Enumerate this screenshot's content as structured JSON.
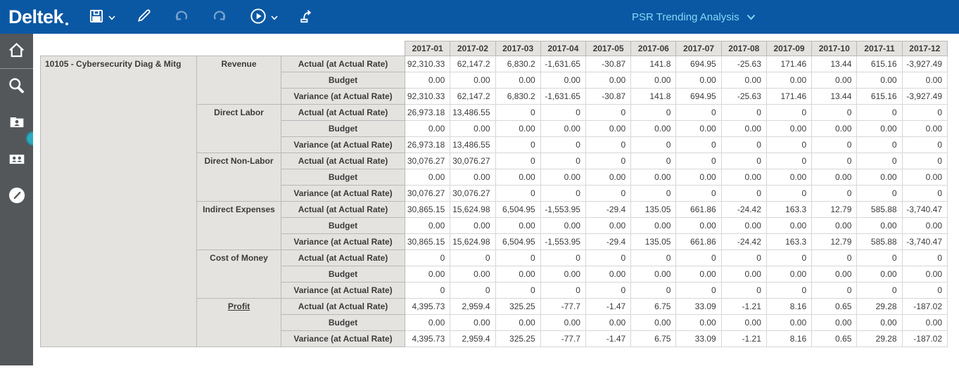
{
  "topbar": {
    "brand": "Deltek",
    "report_title": "PSR Trending Analysis",
    "icons": [
      "save-icon",
      "chevron-down-icon",
      "edit-pencil-icon",
      "undo-icon",
      "redo-icon",
      "run-report-icon",
      "chevron-down-icon",
      "export-submit-icon"
    ],
    "colors": {
      "bar_bg": "#0a58a4",
      "title_text": "#86d7f3"
    }
  },
  "sidebar": {
    "icons": [
      "home-icon",
      "search-icon",
      "employee-folder-icon",
      "employees-group-icon",
      "time-clock-icon"
    ],
    "colors": {
      "bg": "#54575a",
      "handle_accent": "#2fa9bc"
    }
  },
  "grid": {
    "project_label": "10105 - Cybersecurity Diag & Mitg",
    "months": [
      "2017-01",
      "2017-02",
      "2017-03",
      "2017-04",
      "2017-05",
      "2017-06",
      "2017-07",
      "2017-08",
      "2017-09",
      "2017-10",
      "2017-11",
      "2017-12"
    ],
    "colors": {
      "label_bg": "#e5e3e0",
      "label_border": "#b9b9b9",
      "value_border": "#d7d7d7",
      "text": "#3b3b3b"
    },
    "groups": [
      {
        "category": "Revenue",
        "underline": false,
        "rows": [
          {
            "label": "Actual (at Actual Rate)",
            "values": [
              "92,310.33",
              "62,147.2",
              "6,830.2",
              "-1,631.65",
              "-30.87",
              "141.8",
              "694.95",
              "-25.63",
              "171.46",
              "13.44",
              "615.16",
              "-3,927.49"
            ]
          },
          {
            "label": "Budget",
            "values": [
              "0.00",
              "0.00",
              "0.00",
              "0.00",
              "0.00",
              "0.00",
              "0.00",
              "0.00",
              "0.00",
              "0.00",
              "0.00",
              "0.00"
            ]
          },
          {
            "label": "Variance (at Actual Rate)",
            "values": [
              "92,310.33",
              "62,147.2",
              "6,830.2",
              "-1,631.65",
              "-30.87",
              "141.8",
              "694.95",
              "-25.63",
              "171.46",
              "13.44",
              "615.16",
              "-3,927.49"
            ]
          }
        ]
      },
      {
        "category": "Direct Labor",
        "underline": false,
        "rows": [
          {
            "label": "Actual (at Actual Rate)",
            "values": [
              "26,973.18",
              "13,486.55",
              "0",
              "0",
              "0",
              "0",
              "0",
              "0",
              "0",
              "0",
              "0",
              "0"
            ]
          },
          {
            "label": "Budget",
            "values": [
              "0.00",
              "0.00",
              "0.00",
              "0.00",
              "0.00",
              "0.00",
              "0.00",
              "0.00",
              "0.00",
              "0.00",
              "0.00",
              "0.00"
            ]
          },
          {
            "label": "Variance (at Actual Rate)",
            "values": [
              "26,973.18",
              "13,486.55",
              "0",
              "0",
              "0",
              "0",
              "0",
              "0",
              "0",
              "0",
              "0",
              "0"
            ]
          }
        ]
      },
      {
        "category": "Direct Non-Labor",
        "underline": false,
        "rows": [
          {
            "label": "Actual (at Actual Rate)",
            "values": [
              "30,076.27",
              "30,076.27",
              "0",
              "0",
              "0",
              "0",
              "0",
              "0",
              "0",
              "0",
              "0",
              "0"
            ]
          },
          {
            "label": "Budget",
            "values": [
              "0.00",
              "0.00",
              "0.00",
              "0.00",
              "0.00",
              "0.00",
              "0.00",
              "0.00",
              "0.00",
              "0.00",
              "0.00",
              "0.00"
            ]
          },
          {
            "label": "Variance (at Actual Rate)",
            "values": [
              "30,076.27",
              "30,076.27",
              "0",
              "0",
              "0",
              "0",
              "0",
              "0",
              "0",
              "0",
              "0",
              "0"
            ]
          }
        ]
      },
      {
        "category": "Indirect Expenses",
        "underline": false,
        "rows": [
          {
            "label": "Actual (at Actual Rate)",
            "values": [
              "30,865.15",
              "15,624.98",
              "6,504.95",
              "-1,553.95",
              "-29.4",
              "135.05",
              "661.86",
              "-24.42",
              "163.3",
              "12.79",
              "585.88",
              "-3,740.47"
            ]
          },
          {
            "label": "Budget",
            "values": [
              "0.00",
              "0.00",
              "0.00",
              "0.00",
              "0.00",
              "0.00",
              "0.00",
              "0.00",
              "0.00",
              "0.00",
              "0.00",
              "0.00"
            ]
          },
          {
            "label": "Variance (at Actual Rate)",
            "values": [
              "30,865.15",
              "15,624.98",
              "6,504.95",
              "-1,553.95",
              "-29.4",
              "135.05",
              "661.86",
              "-24.42",
              "163.3",
              "12.79",
              "585.88",
              "-3,740.47"
            ]
          }
        ]
      },
      {
        "category": "Cost of Money",
        "underline": false,
        "rows": [
          {
            "label": "Actual (at Actual Rate)",
            "values": [
              "0",
              "0",
              "0",
              "0",
              "0",
              "0",
              "0",
              "0",
              "0",
              "0",
              "0",
              "0"
            ]
          },
          {
            "label": "Budget",
            "values": [
              "0.00",
              "0.00",
              "0.00",
              "0.00",
              "0.00",
              "0.00",
              "0.00",
              "0.00",
              "0.00",
              "0.00",
              "0.00",
              "0.00"
            ]
          },
          {
            "label": "Variance (at Actual Rate)",
            "values": [
              "0",
              "0",
              "0",
              "0",
              "0",
              "0",
              "0",
              "0",
              "0",
              "0",
              "0",
              "0"
            ]
          }
        ]
      },
      {
        "category": "Profit",
        "underline": true,
        "rows": [
          {
            "label": "Actual (at Actual Rate)",
            "values": [
              "4,395.73",
              "2,959.4",
              "325.25",
              "-77.7",
              "-1.47",
              "6.75",
              "33.09",
              "-1.21",
              "8.16",
              "0.65",
              "29.28",
              "-187.02"
            ]
          },
          {
            "label": "Budget",
            "values": [
              "0.00",
              "0.00",
              "0.00",
              "0.00",
              "0.00",
              "0.00",
              "0.00",
              "0.00",
              "0.00",
              "0.00",
              "0.00",
              "0.00"
            ]
          },
          {
            "label": "Variance (at Actual Rate)",
            "values": [
              "4,395.73",
              "2,959.4",
              "325.25",
              "-77.7",
              "-1.47",
              "6.75",
              "33.09",
              "-1.21",
              "8.16",
              "0.65",
              "29.28",
              "-187.02"
            ]
          }
        ]
      }
    ]
  }
}
